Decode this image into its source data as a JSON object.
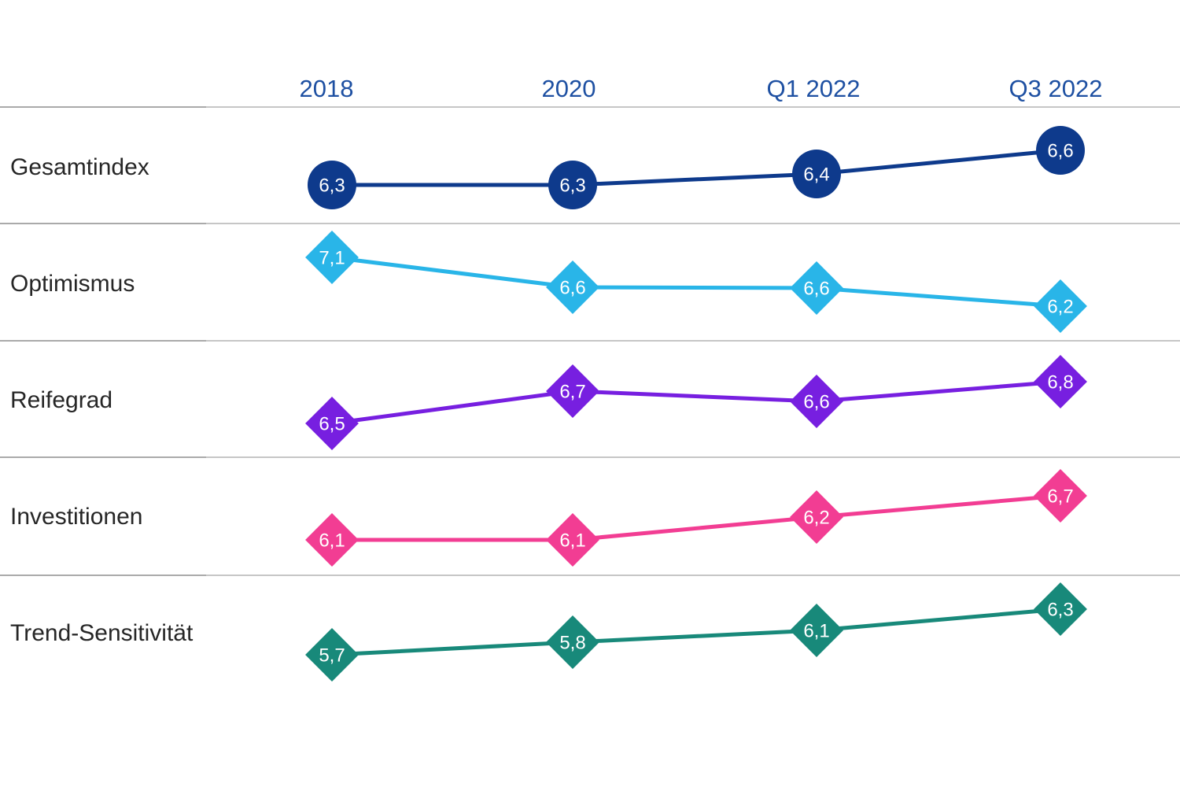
{
  "colors": {
    "header_text": "#1e50a2",
    "row_label": "#262626",
    "separator_left": "#aaaaaa",
    "separator_right": "#c6c6c6",
    "marker_label": "#ffffff"
  },
  "chart_data": {
    "type": "line",
    "layout": "small-multiple rows with shared top category axis",
    "grid": "horizontal row separators only",
    "legend_position": "row labels at left",
    "value_decimal_style": "comma",
    "categories": [
      "2018",
      "2020",
      "Q1 2022",
      "Q3 2022"
    ],
    "series": [
      {
        "name": "Gesamtindex",
        "marker": "circle",
        "color": "#0e3a8c",
        "values": [
          6.3,
          6.3,
          6.4,
          6.6
        ],
        "labels": [
          "6,3",
          "6,3",
          "6,4",
          "6,6"
        ]
      },
      {
        "name": "Optimismus",
        "marker": "diamond",
        "color": "#29b5e8",
        "values": [
          7.1,
          6.6,
          6.6,
          6.2
        ],
        "labels": [
          "7,1",
          "6,6",
          "6,6",
          "6,2"
        ]
      },
      {
        "name": "Reifegrad",
        "marker": "diamond",
        "color": "#771fe0",
        "values": [
          6.5,
          6.7,
          6.6,
          6.8
        ],
        "labels": [
          "6,5",
          "6,7",
          "6,6",
          "6,8"
        ]
      },
      {
        "name": "Investitionen",
        "marker": "diamond",
        "color": "#f23d93",
        "values": [
          6.1,
          6.1,
          6.2,
          6.7
        ],
        "labels": [
          "6,1",
          "6,1",
          "6,2",
          "6,7"
        ]
      },
      {
        "name": "Trend-Sensitivität",
        "marker": "diamond",
        "color": "#18897a",
        "values": [
          5.7,
          5.8,
          6.1,
          6.3
        ],
        "labels": [
          "5,7",
          "5,8",
          "6,1",
          "6,3"
        ]
      }
    ]
  }
}
